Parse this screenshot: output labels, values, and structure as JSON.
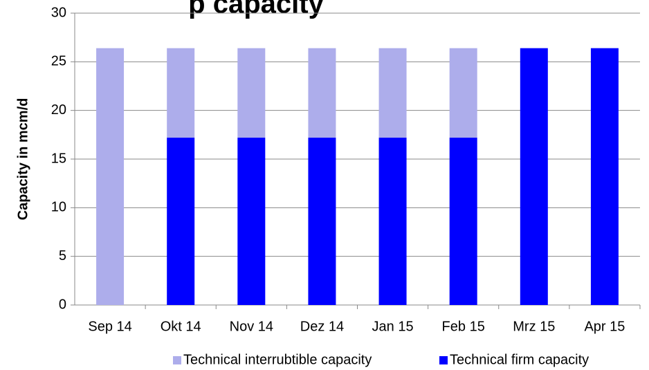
{
  "chart_data": {
    "type": "stacked_bar",
    "title": "p capacity",
    "y_label": "Capacity in mcm/d",
    "categories": [
      "Sep 14",
      "Okt 14",
      "Nov 14",
      "Dez 14",
      "Jan 15",
      "Feb 15",
      "Mrz 15",
      "Apr 15"
    ],
    "series": [
      {
        "name": "Technical interrubtible capacity",
        "color": "#adadeb",
        "values": [
          26.4,
          9.2,
          9.2,
          9.2,
          9.2,
          9.2,
          0,
          0
        ]
      },
      {
        "name": "Technical firm capacity",
        "color": "#0000ff",
        "values": [
          0,
          17.2,
          17.2,
          17.2,
          17.2,
          17.2,
          26.4,
          26.4
        ]
      }
    ],
    "stack_order": [
      1,
      0
    ],
    "ylim": [
      0,
      30
    ],
    "yticks": [
      0,
      5,
      10,
      15,
      20,
      25,
      30
    ],
    "grid": true,
    "legend": "bottom-right"
  }
}
